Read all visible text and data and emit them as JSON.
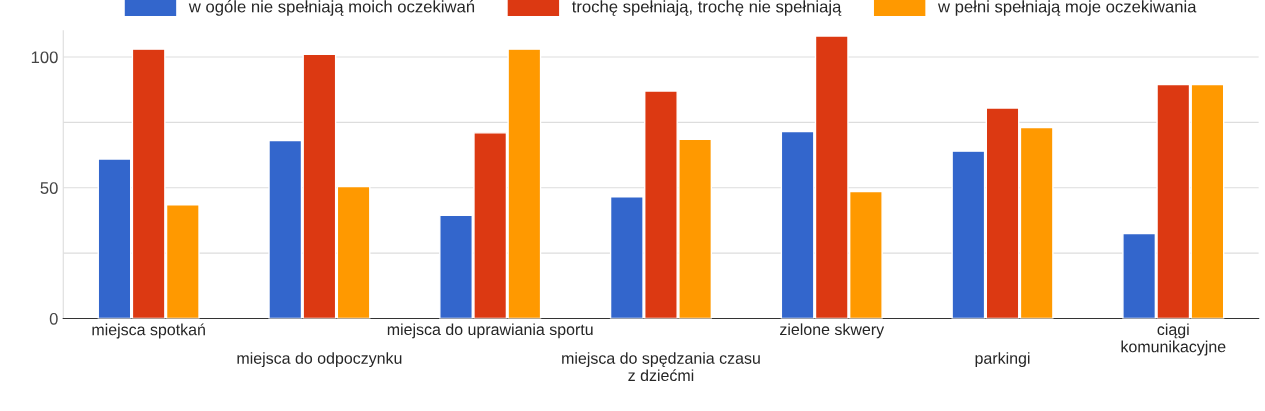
{
  "chart_data": {
    "type": "bar",
    "categories": [
      "miejsca spotkań",
      "miejsca do odpoczynku",
      "miejsca do uprawiania sportu",
      "miejsca do spędzania czasu\nz dziećmi",
      "zielone skwery",
      "parkingi",
      "ciągi\nkomunikacyjne"
    ],
    "series": [
      {
        "name": "w ogóle nie spełniają moich oczekiwań",
        "color": "#3366cc",
        "values": [
          61,
          68,
          39.5,
          46.5,
          71.5,
          64,
          32.5
        ]
      },
      {
        "name": "trochę spełniają, trochę nie spełniają",
        "color": "#dc3912",
        "values": [
          103,
          101,
          71,
          87,
          108,
          80.5,
          89.5
        ]
      },
      {
        "name": "w pełni spełniają moje oczekiwania",
        "color": "#ff9900",
        "values": [
          43.5,
          50.5,
          103,
          68.5,
          48.5,
          73,
          89.5
        ]
      }
    ],
    "ylim": [
      0,
      110
    ],
    "yticks": [
      0,
      {
        "value": 25,
        "label": null
      },
      50,
      {
        "value": 75,
        "label": null
      },
      100
    ],
    "grid": "y",
    "legend": "top"
  }
}
